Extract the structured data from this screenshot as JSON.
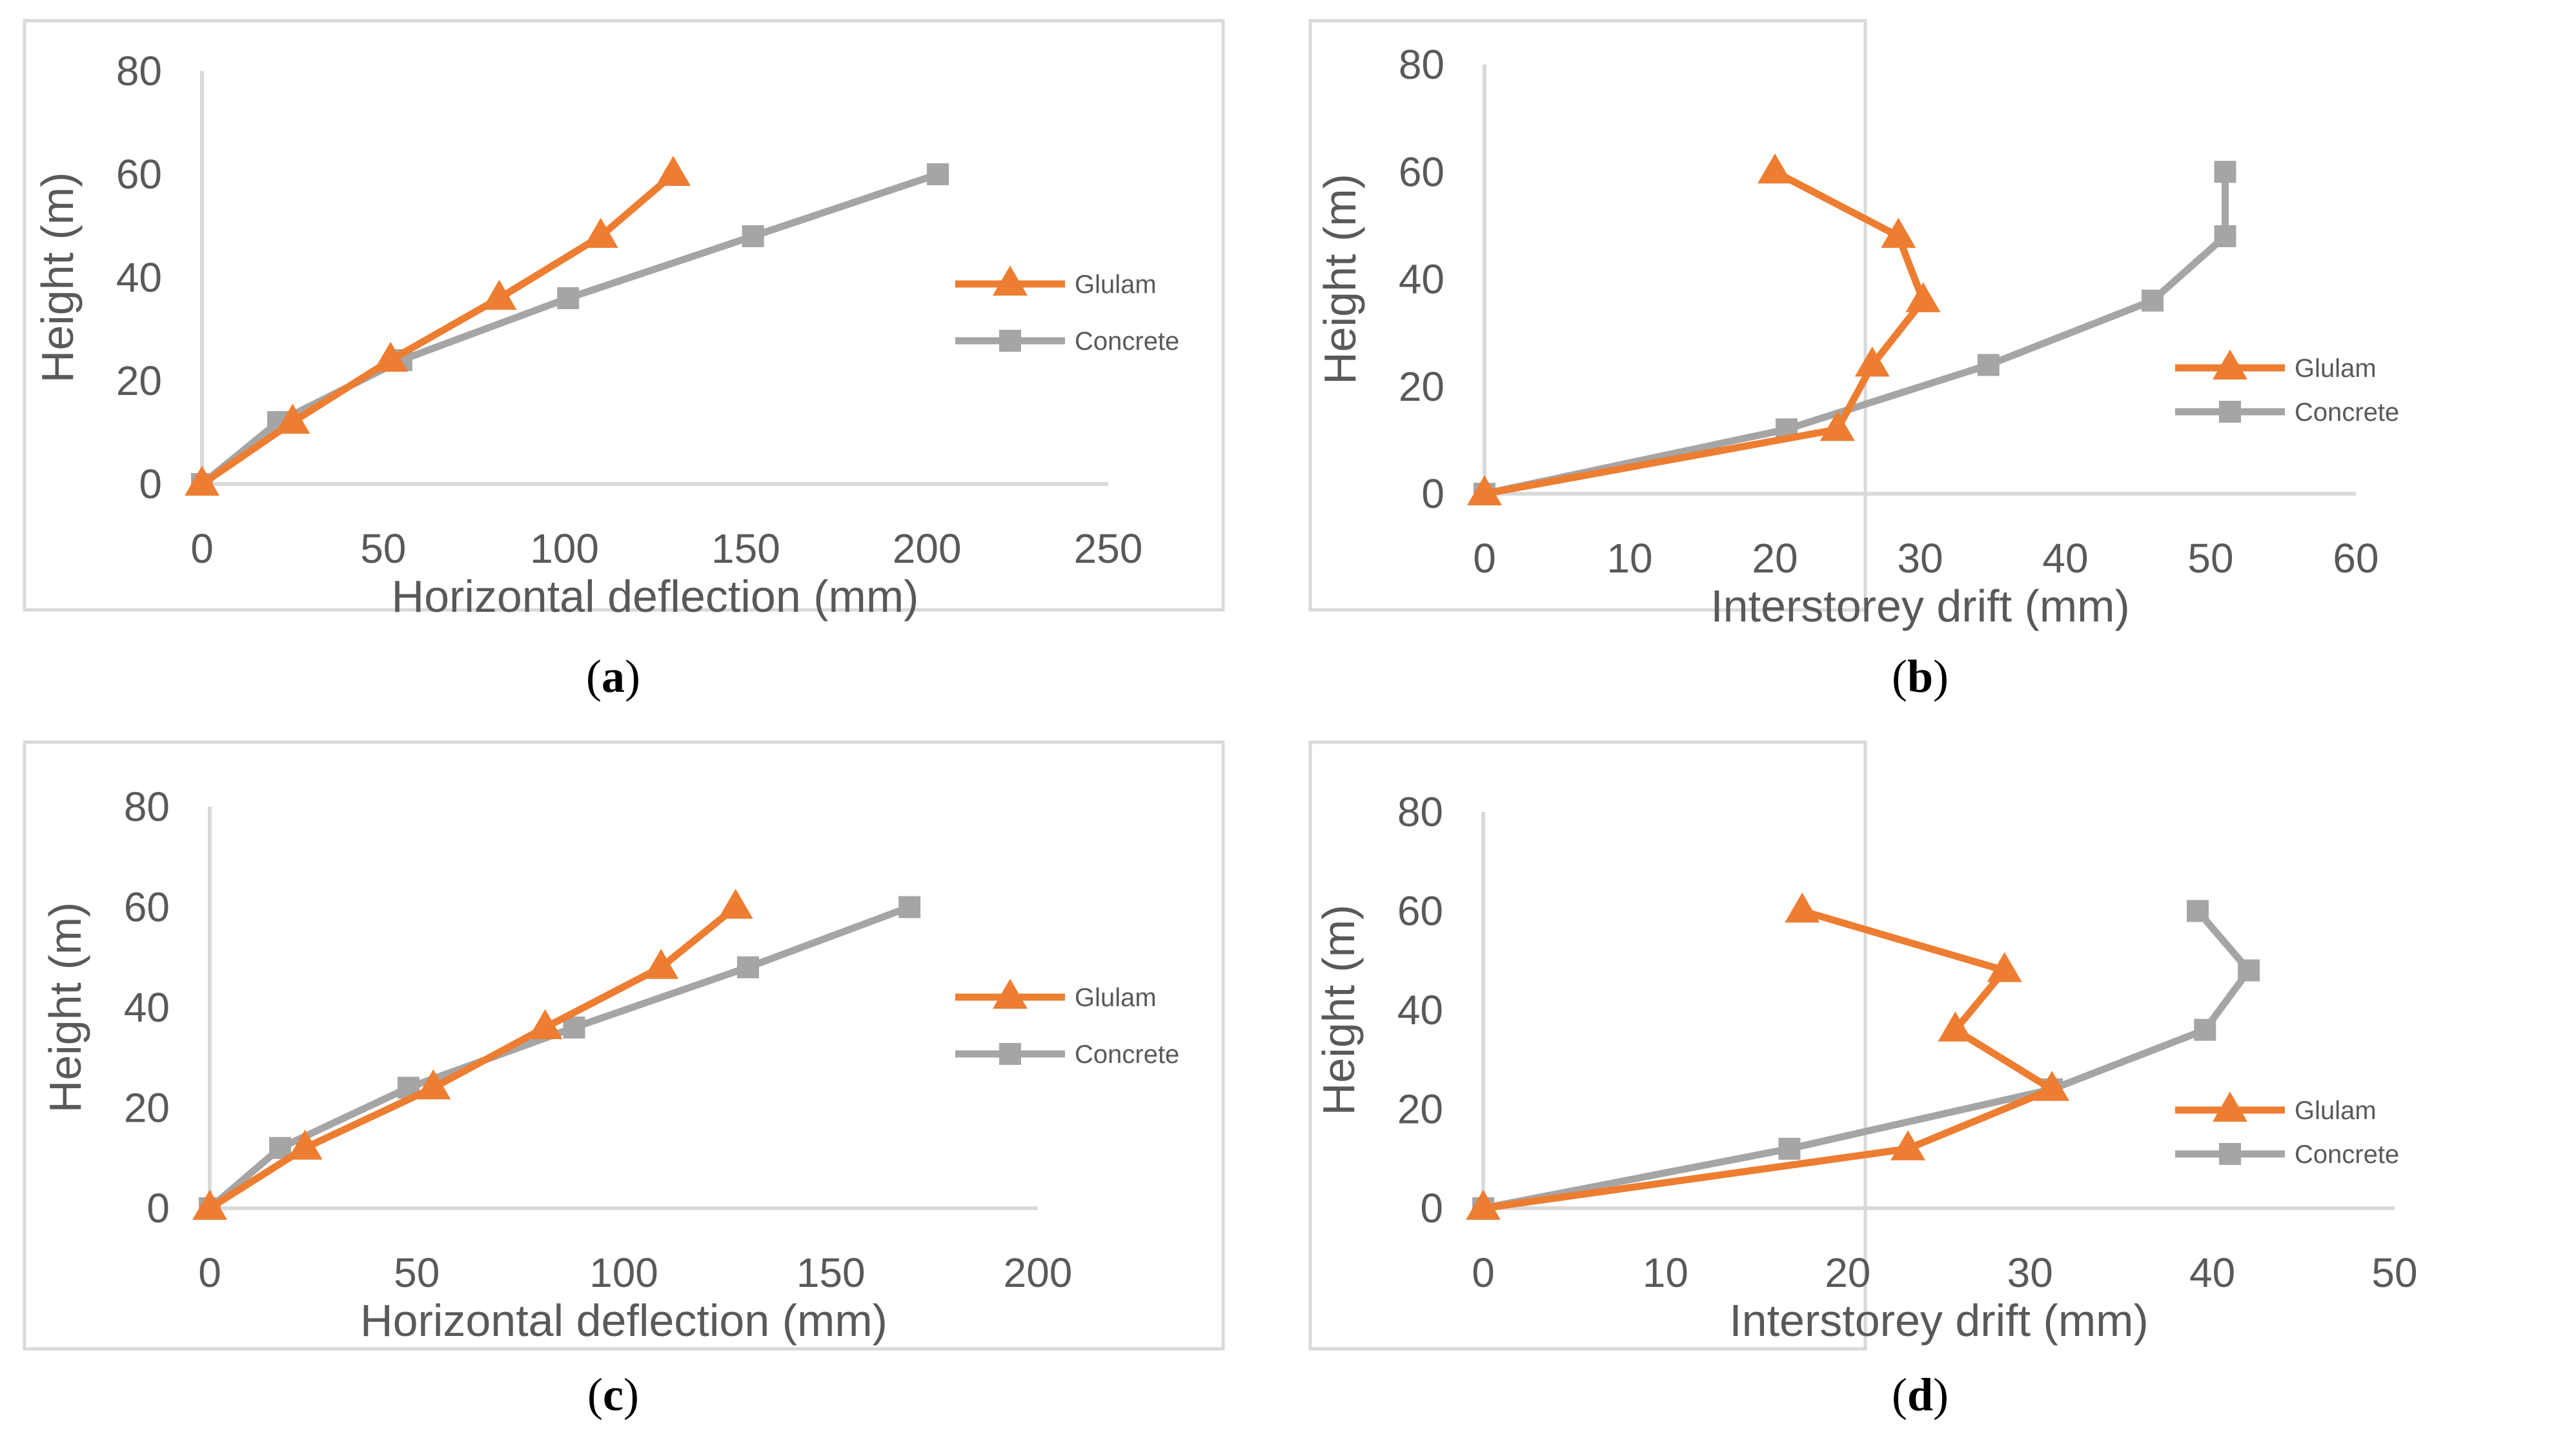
{
  "colors": {
    "glulam": "#ED7D31",
    "concrete": "#A5A5A5"
  },
  "chart_data": [
    {
      "type": "line",
      "panel": "a",
      "xlabel": "Horizontal deflection (mm)",
      "ylabel": "Height (m)",
      "xlim": [
        0,
        250
      ],
      "ylim": [
        0,
        80
      ],
      "xticks": [
        0,
        50,
        100,
        150,
        200,
        250
      ],
      "yticks": [
        0,
        20,
        40,
        60,
        80
      ],
      "legend_position": "right",
      "series": [
        {
          "name": "Glulam",
          "marker": "triangle",
          "points": [
            [
              0,
              0
            ],
            [
              25,
              12
            ],
            [
              52,
              24
            ],
            [
              82,
              36
            ],
            [
              110,
              48
            ],
            [
              130,
              60
            ]
          ]
        },
        {
          "name": "Concrete",
          "marker": "square",
          "points": [
            [
              0,
              0
            ],
            [
              21,
              12
            ],
            [
              55,
              24
            ],
            [
              101,
              36
            ],
            [
              152,
              48
            ],
            [
              203,
              60
            ]
          ]
        }
      ]
    },
    {
      "type": "line",
      "panel": "b",
      "xlabel": "Interstorey drift (mm)",
      "ylabel": "Height (m)",
      "xlim": [
        0,
        60
      ],
      "ylim": [
        0,
        80
      ],
      "xticks": [
        0,
        10,
        20,
        30,
        40,
        50,
        60
      ],
      "yticks": [
        0,
        20,
        40,
        60,
        80
      ],
      "legend_position": "right",
      "series": [
        {
          "name": "Glulam",
          "marker": "triangle",
          "points": [
            [
              0,
              0
            ],
            [
              24.3,
              12
            ],
            [
              26.7,
              24
            ],
            [
              30.2,
              36
            ],
            [
              28.5,
              48
            ],
            [
              20.0,
              60
            ]
          ]
        },
        {
          "name": "Concrete",
          "marker": "square",
          "points": [
            [
              0,
              0
            ],
            [
              20.8,
              12
            ],
            [
              34.7,
              24
            ],
            [
              46.0,
              36
            ],
            [
              51.0,
              48
            ],
            [
              51.0,
              60
            ]
          ]
        }
      ]
    },
    {
      "type": "line",
      "panel": "c",
      "xlabel": "Horizontal deflection (mm)",
      "ylabel": "Height (m)",
      "xlim": [
        0,
        200
      ],
      "ylim": [
        0,
        80
      ],
      "xticks": [
        0,
        50,
        100,
        150,
        200
      ],
      "yticks": [
        0,
        20,
        40,
        60,
        80
      ],
      "legend_position": "right",
      "series": [
        {
          "name": "Glulam",
          "marker": "triangle",
          "points": [
            [
              0,
              0
            ],
            [
              23,
              12
            ],
            [
              54,
              24
            ],
            [
              81,
              36
            ],
            [
              109,
              48
            ],
            [
              127,
              60
            ]
          ]
        },
        {
          "name": "Concrete",
          "marker": "square",
          "points": [
            [
              0,
              0
            ],
            [
              17,
              12
            ],
            [
              48,
              24
            ],
            [
              88,
              36
            ],
            [
              130,
              48
            ],
            [
              169,
              60
            ]
          ]
        }
      ]
    },
    {
      "type": "line",
      "panel": "d",
      "xlabel": "Interstorey drift (mm)",
      "ylabel": "Height (m)",
      "xlim": [
        0,
        50
      ],
      "ylim": [
        0,
        80
      ],
      "xticks": [
        0,
        10,
        20,
        30,
        40,
        50
      ],
      "yticks": [
        0,
        20,
        40,
        60,
        80
      ],
      "legend_position": "right",
      "series": [
        {
          "name": "Glulam",
          "marker": "triangle",
          "points": [
            [
              0,
              0
            ],
            [
              23.3,
              12
            ],
            [
              31.2,
              24
            ],
            [
              25.9,
              36
            ],
            [
              28.6,
              48
            ],
            [
              17.5,
              60
            ]
          ]
        },
        {
          "name": "Concrete",
          "marker": "square",
          "points": [
            [
              0,
              0
            ],
            [
              16.8,
              12
            ],
            [
              31.2,
              24
            ],
            [
              39.6,
              36
            ],
            [
              42.0,
              48
            ],
            [
              39.2,
              60
            ]
          ]
        }
      ]
    }
  ]
}
